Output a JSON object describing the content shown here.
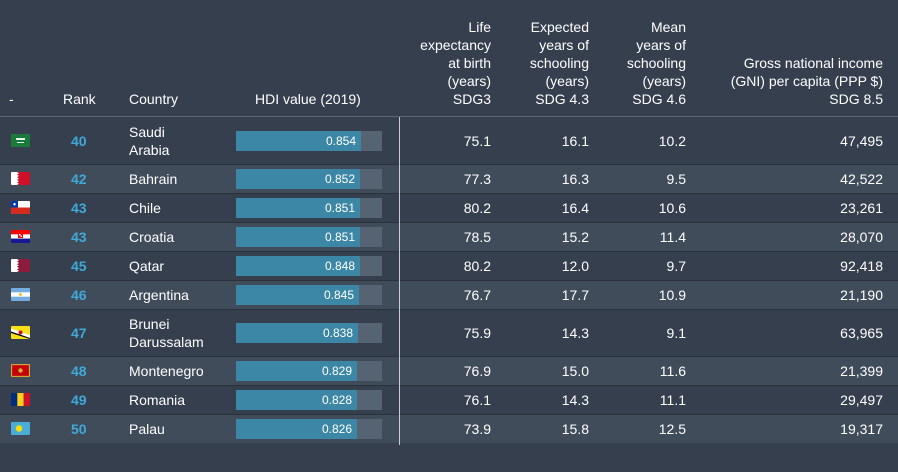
{
  "header": {
    "flag_col": "-",
    "rank": "Rank",
    "country": "Country",
    "hdi": "HDI value (2019)",
    "life": [
      "Life",
      "expectancy",
      "at birth",
      "(years)",
      "SDG3"
    ],
    "expected": [
      "Expected",
      "years of",
      "schooling",
      "(years)",
      "SDG 4.3"
    ],
    "mean": [
      "Mean",
      "years of",
      "schooling",
      "(years)",
      "SDG 4.6"
    ],
    "gni": [
      "Gross national income",
      "(GNI) per capita (PPP $)",
      "SDG 8.5"
    ]
  },
  "chart_data": {
    "type": "table",
    "bar_column": "HDI value (2019)",
    "bar_scale": [
      0,
      1
    ],
    "colors": {
      "rank": "#3fa9d8",
      "bar_fill": "#3d87a6",
      "bar_track": "#566373"
    },
    "rows": [
      {
        "flag": "saudi-arabia",
        "rank": "40",
        "country": [
          "Saudi",
          "Arabia"
        ],
        "hdi": "0.854",
        "life": "75.1",
        "expected": "16.1",
        "mean": "10.2",
        "gni": "47,495"
      },
      {
        "flag": "bahrain",
        "rank": "42",
        "country": [
          "Bahrain"
        ],
        "hdi": "0.852",
        "life": "77.3",
        "expected": "16.3",
        "mean": "9.5",
        "gni": "42,522"
      },
      {
        "flag": "chile",
        "rank": "43",
        "country": [
          "Chile"
        ],
        "hdi": "0.851",
        "life": "80.2",
        "expected": "16.4",
        "mean": "10.6",
        "gni": "23,261"
      },
      {
        "flag": "croatia",
        "rank": "43",
        "country": [
          "Croatia"
        ],
        "hdi": "0.851",
        "life": "78.5",
        "expected": "15.2",
        "mean": "11.4",
        "gni": "28,070"
      },
      {
        "flag": "qatar",
        "rank": "45",
        "country": [
          "Qatar"
        ],
        "hdi": "0.848",
        "life": "80.2",
        "expected": "12.0",
        "mean": "9.7",
        "gni": "92,418"
      },
      {
        "flag": "argentina",
        "rank": "46",
        "country": [
          "Argentina"
        ],
        "hdi": "0.845",
        "life": "76.7",
        "expected": "17.7",
        "mean": "10.9",
        "gni": "21,190"
      },
      {
        "flag": "brunei",
        "rank": "47",
        "country": [
          "Brunei",
          "Darussalam"
        ],
        "hdi": "0.838",
        "life": "75.9",
        "expected": "14.3",
        "mean": "9.1",
        "gni": "63,965"
      },
      {
        "flag": "montenegro",
        "rank": "48",
        "country": [
          "Montenegro"
        ],
        "hdi": "0.829",
        "life": "76.9",
        "expected": "15.0",
        "mean": "11.6",
        "gni": "21,399"
      },
      {
        "flag": "romania",
        "rank": "49",
        "country": [
          "Romania"
        ],
        "hdi": "0.828",
        "life": "76.1",
        "expected": "14.3",
        "mean": "11.1",
        "gni": "29,497"
      },
      {
        "flag": "palau",
        "rank": "50",
        "country": [
          "Palau"
        ],
        "hdi": "0.826",
        "life": "73.9",
        "expected": "15.8",
        "mean": "12.5",
        "gni": "19,317"
      }
    ]
  }
}
